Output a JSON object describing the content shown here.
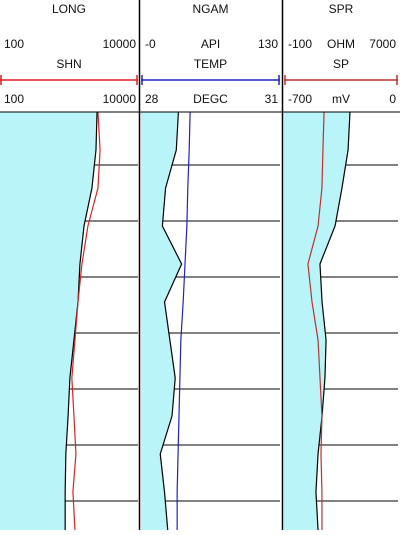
{
  "tracks": [
    {
      "fill_color": "#b8f4f8",
      "log": true,
      "curves": [
        {
          "name": "LONG",
          "color": "#000000",
          "scale": [
            100,
            10000
          ],
          "values": [
            2550,
            2460,
            2150,
            1650,
            1440,
            1350,
            1180,
            1030,
            970,
            900,
            880,
            880
          ]
        },
        {
          "name": "SHN",
          "color": "#e02020",
          "scale": [
            100,
            10000
          ],
          "values": [
            2630,
            2820,
            2630,
            1880,
            1540,
            1350,
            1220,
            1100,
            1180,
            1260,
            1140,
            1220
          ]
        }
      ]
    },
    {
      "fill_color": "#b8f4f8",
      "log": false,
      "curves": [
        {
          "name": "NGAM",
          "color": "#000000",
          "unit": "API",
          "scale": [
            {
              "value": 0,
              "label": "-0"
            },
            130
          ],
          "values": [
            35,
            33,
            23,
            20,
            38,
            22,
            27,
            32,
            29,
            18,
            22,
            25
          ]
        },
        {
          "name": "TEMP",
          "color": "#2020d0",
          "unit": "DEGC",
          "scale": [
            28,
            31
          ],
          "values": [
            29.06,
            29.04,
            29.01,
            28.99,
            28.95,
            28.91,
            28.86,
            28.84,
            28.82,
            28.8,
            28.78,
            28.78
          ]
        }
      ]
    },
    {
      "fill_color": "#b8f4f8",
      "log": false,
      "curves": [
        {
          "name": "SPR",
          "color": "#000000",
          "unit": "OHM",
          "scale": [
            -100,
            7000
          ],
          "values": [
            4010,
            3890,
            3510,
            3080,
            2140,
            2270,
            2520,
            2450,
            2270,
            2020,
            1890,
            2020
          ]
        },
        {
          "name": "SP",
          "color": "#c03030",
          "unit": "mV",
          "scale": [
            -700,
            0
          ],
          "values": [
            -454,
            -461,
            -467,
            -491,
            -553,
            -528,
            -491,
            -479,
            -467,
            -473,
            -467,
            -467
          ]
        }
      ]
    }
  ]
}
